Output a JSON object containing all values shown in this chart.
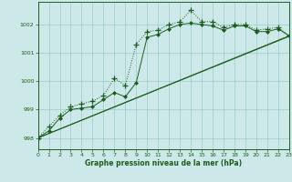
{
  "title": "Graphe pression niveau de la mer (hPa)",
  "bg_color": "#cce8e8",
  "grid_color": "#99cccc",
  "line_color": "#1e5c1e",
  "xlim": [
    0,
    23
  ],
  "ylim": [
    997.6,
    1002.8
  ],
  "yticks": [
    998,
    999,
    1000,
    1001,
    1002
  ],
  "xticks": [
    0,
    1,
    2,
    3,
    4,
    5,
    6,
    7,
    8,
    9,
    10,
    11,
    12,
    13,
    14,
    15,
    16,
    17,
    18,
    19,
    20,
    21,
    22,
    23
  ],
  "series1_x": [
    0,
    1,
    2,
    3,
    4,
    5,
    6,
    7,
    8,
    9,
    10,
    11,
    12,
    13,
    14,
    15,
    16,
    17,
    18,
    19,
    20,
    21,
    22,
    23
  ],
  "series1_y": [
    998.0,
    998.4,
    998.8,
    999.1,
    999.2,
    999.3,
    999.5,
    1000.1,
    999.85,
    1001.3,
    1001.75,
    1001.8,
    1002.0,
    1002.1,
    1002.5,
    1002.1,
    1002.1,
    1001.9,
    1002.0,
    1002.0,
    1001.8,
    1001.85,
    1001.9,
    1001.6
  ],
  "series2_x": [
    0,
    1,
    2,
    3,
    4,
    5,
    6,
    7,
    8,
    9,
    10,
    11,
    12,
    13,
    14,
    15,
    16,
    17,
    18,
    19,
    20,
    21,
    22,
    23
  ],
  "series2_y": [
    998.0,
    998.25,
    998.7,
    999.0,
    999.05,
    999.1,
    999.35,
    999.6,
    999.45,
    999.95,
    1001.55,
    1001.65,
    1001.85,
    1002.0,
    1002.05,
    1002.0,
    1001.95,
    1001.8,
    1001.95,
    1001.95,
    1001.75,
    1001.75,
    1001.85,
    1001.6
  ],
  "series3_x": [
    0,
    23
  ],
  "series3_y": [
    998.0,
    1001.6
  ],
  "series4_x": [
    0,
    23
  ],
  "series4_y": [
    998.0,
    1001.58
  ]
}
